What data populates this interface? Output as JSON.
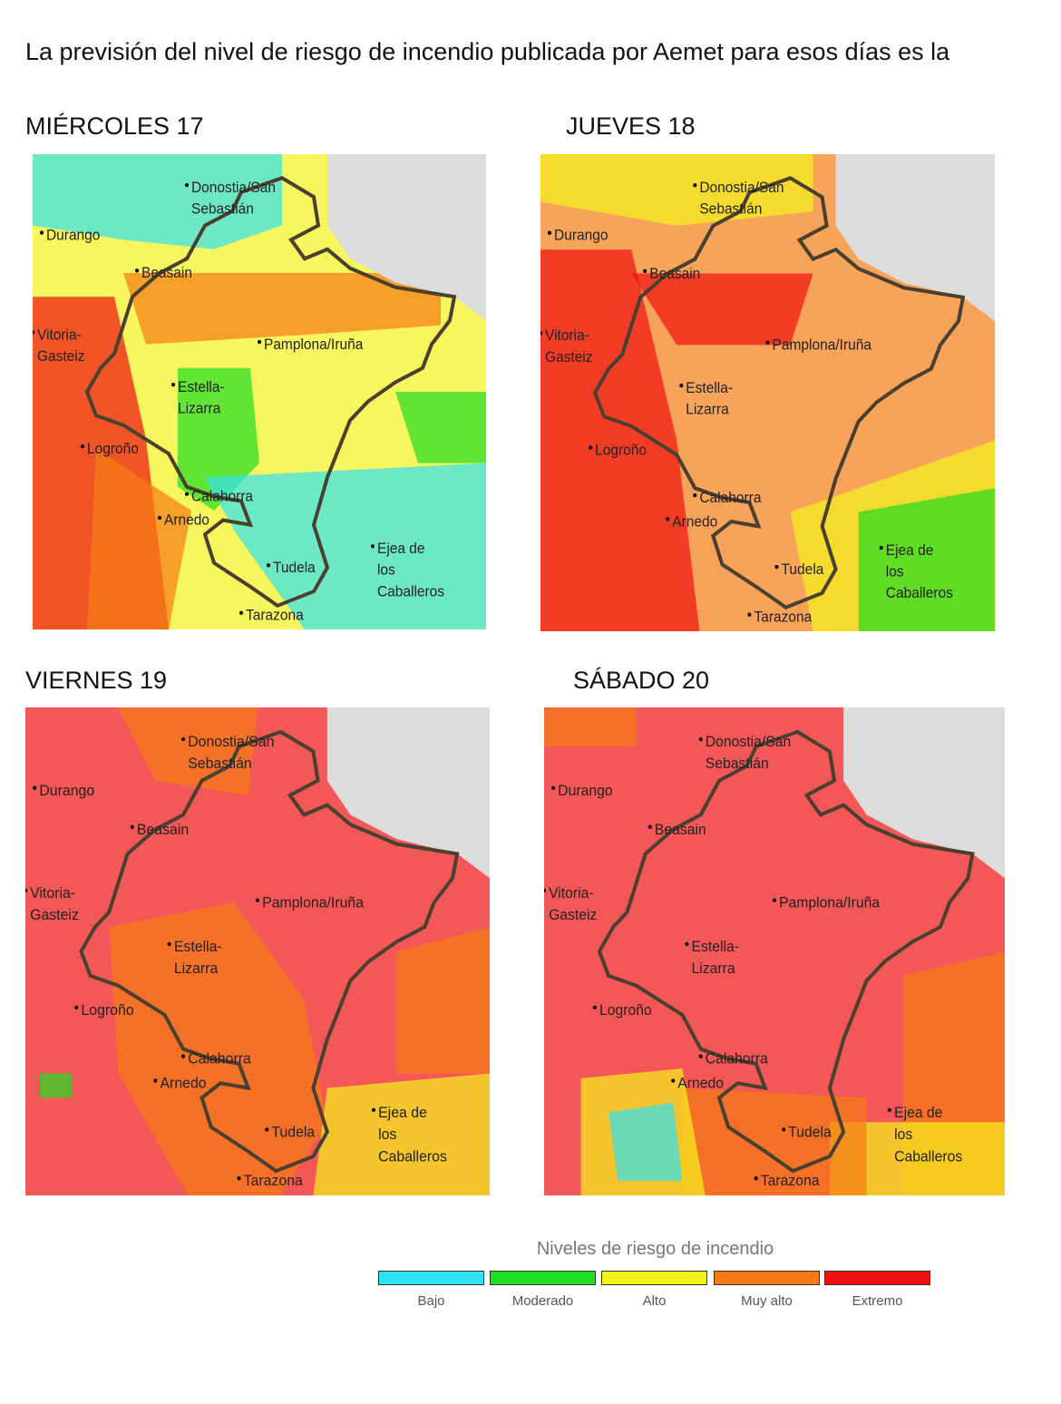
{
  "intro": "La previsión del nivel de riesgo de incendio publicada por Aemet para esos días es la",
  "maps": [
    {
      "title": "MIÉRCOLES 17"
    },
    {
      "title": "JUEVES 18"
    },
    {
      "title": "VIERNES 19"
    },
    {
      "title": "SÁBADO 20"
    }
  ],
  "places": [
    [
      "Donostia/San",
      "Sebastián"
    ],
    [
      "Durango"
    ],
    [
      "Beasain"
    ],
    [
      "Vitoria-",
      "Gasteiz"
    ],
    [
      "Pamplona/Iruña"
    ],
    [
      "Estella-",
      "Lizarra"
    ],
    [
      "Logroño"
    ],
    [
      "Calahorra"
    ],
    [
      "Arnedo"
    ],
    [
      "Tudela"
    ],
    [
      "Ejea de",
      "los",
      "Caballeros"
    ],
    [
      "Tarazona"
    ]
  ],
  "legend": {
    "title": "Niveles de riesgo de incendio",
    "levels": [
      {
        "label": "Bajo",
        "color": "#30e3f0"
      },
      {
        "label": "Moderado",
        "color": "#22dd22"
      },
      {
        "label": "Alto",
        "color": "#f4f21a"
      },
      {
        "label": "Muy alto",
        "color": "#f57c14"
      },
      {
        "label": "Extremo",
        "color": "#f01010"
      }
    ]
  }
}
